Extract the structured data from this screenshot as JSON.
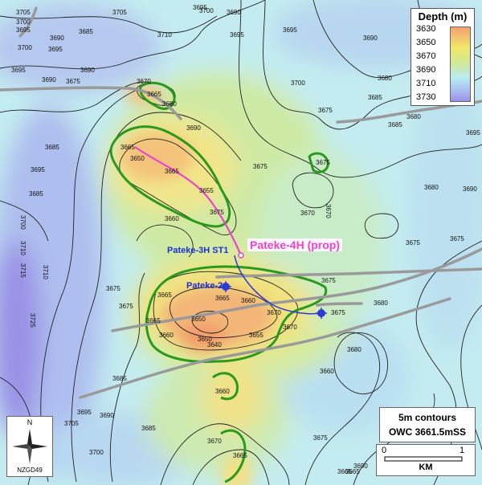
{
  "legend": {
    "title": "Depth (m)",
    "values": [
      "3630",
      "3650",
      "3670",
      "3690",
      "3710",
      "3730"
    ]
  },
  "wells": {
    "prop": "Pateke-4H (prop)",
    "st1": "Pateke-3H ST1",
    "w2": "Pateke-2"
  },
  "notes": {
    "line1": "5m contours",
    "line2": "OWC 3661.5mSS"
  },
  "scale": {
    "start": "0",
    "end": "1",
    "unit": "KM"
  },
  "north": {
    "letter": "N",
    "datum": "NZGD49"
  },
  "contour_labels": [
    "3705",
    "3700",
    "3695",
    "3690",
    "3685",
    "3695",
    "3695",
    "3705",
    "3690",
    "3700",
    "3700",
    "3710",
    "3695",
    "3695",
    "3690",
    "3685",
    "3695",
    "3685",
    "3675",
    "3670",
    "3665",
    "3680",
    "3690",
    "3700",
    "3695",
    "3690",
    "3690",
    "3685",
    "3680",
    "3675",
    "3665",
    "3675",
    "3650",
    "3665",
    "3655",
    "3660",
    "3675",
    "3675",
    "3680",
    "3670",
    "3670",
    "3675",
    "3675",
    "3680",
    "3685",
    "3695",
    "3690",
    "3700",
    "3710",
    "3715",
    "3710",
    "3725",
    "3665",
    "3650",
    "3640",
    "3650",
    "3655",
    "3660",
    "3665",
    "3660",
    "3665",
    "3675",
    "3675",
    "3680",
    "3680",
    "3685",
    "3670",
    "3675",
    "3660",
    "3665",
    "3685",
    "3690",
    "3695",
    "3705",
    "3700",
    "3690",
    "3680",
    "3675",
    "3670",
    "3670",
    "3665",
    "3660",
    "3680",
    "3665",
    "3675",
    "3670"
  ],
  "colors": {
    "fault": "#9a9a9a",
    "owc": "#2a9a1e",
    "contour": "#222222",
    "proposed_well": "#e845cf",
    "existing_well": "#2a3bd6"
  }
}
